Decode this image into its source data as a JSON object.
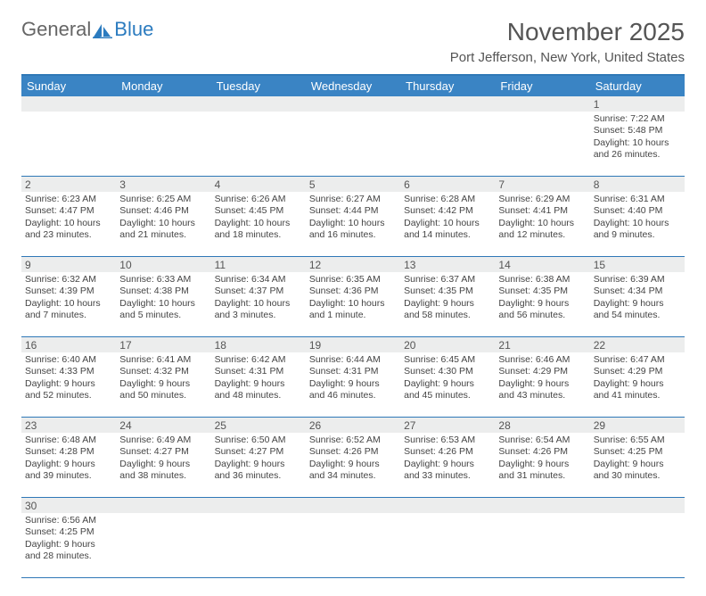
{
  "logo": {
    "part1": "General",
    "part2": "Blue"
  },
  "title": "November 2025",
  "location": "Port Jefferson, New York, United States",
  "dow": [
    "Sunday",
    "Monday",
    "Tuesday",
    "Wednesday",
    "Thursday",
    "Friday",
    "Saturday"
  ],
  "colors": {
    "header_bg": "#3a84c4",
    "border": "#2f78b7",
    "daynum_bg": "#eceded",
    "text": "#444"
  },
  "weeks": [
    [
      null,
      null,
      null,
      null,
      null,
      null,
      {
        "d": "1",
        "sr": "Sunrise: 7:22 AM",
        "ss": "Sunset: 5:48 PM",
        "dl": "Daylight: 10 hours and 26 minutes."
      }
    ],
    [
      {
        "d": "2",
        "sr": "Sunrise: 6:23 AM",
        "ss": "Sunset: 4:47 PM",
        "dl": "Daylight: 10 hours and 23 minutes."
      },
      {
        "d": "3",
        "sr": "Sunrise: 6:25 AM",
        "ss": "Sunset: 4:46 PM",
        "dl": "Daylight: 10 hours and 21 minutes."
      },
      {
        "d": "4",
        "sr": "Sunrise: 6:26 AM",
        "ss": "Sunset: 4:45 PM",
        "dl": "Daylight: 10 hours and 18 minutes."
      },
      {
        "d": "5",
        "sr": "Sunrise: 6:27 AM",
        "ss": "Sunset: 4:44 PM",
        "dl": "Daylight: 10 hours and 16 minutes."
      },
      {
        "d": "6",
        "sr": "Sunrise: 6:28 AM",
        "ss": "Sunset: 4:42 PM",
        "dl": "Daylight: 10 hours and 14 minutes."
      },
      {
        "d": "7",
        "sr": "Sunrise: 6:29 AM",
        "ss": "Sunset: 4:41 PM",
        "dl": "Daylight: 10 hours and 12 minutes."
      },
      {
        "d": "8",
        "sr": "Sunrise: 6:31 AM",
        "ss": "Sunset: 4:40 PM",
        "dl": "Daylight: 10 hours and 9 minutes."
      }
    ],
    [
      {
        "d": "9",
        "sr": "Sunrise: 6:32 AM",
        "ss": "Sunset: 4:39 PM",
        "dl": "Daylight: 10 hours and 7 minutes."
      },
      {
        "d": "10",
        "sr": "Sunrise: 6:33 AM",
        "ss": "Sunset: 4:38 PM",
        "dl": "Daylight: 10 hours and 5 minutes."
      },
      {
        "d": "11",
        "sr": "Sunrise: 6:34 AM",
        "ss": "Sunset: 4:37 PM",
        "dl": "Daylight: 10 hours and 3 minutes."
      },
      {
        "d": "12",
        "sr": "Sunrise: 6:35 AM",
        "ss": "Sunset: 4:36 PM",
        "dl": "Daylight: 10 hours and 1 minute."
      },
      {
        "d": "13",
        "sr": "Sunrise: 6:37 AM",
        "ss": "Sunset: 4:35 PM",
        "dl": "Daylight: 9 hours and 58 minutes."
      },
      {
        "d": "14",
        "sr": "Sunrise: 6:38 AM",
        "ss": "Sunset: 4:35 PM",
        "dl": "Daylight: 9 hours and 56 minutes."
      },
      {
        "d": "15",
        "sr": "Sunrise: 6:39 AM",
        "ss": "Sunset: 4:34 PM",
        "dl": "Daylight: 9 hours and 54 minutes."
      }
    ],
    [
      {
        "d": "16",
        "sr": "Sunrise: 6:40 AM",
        "ss": "Sunset: 4:33 PM",
        "dl": "Daylight: 9 hours and 52 minutes."
      },
      {
        "d": "17",
        "sr": "Sunrise: 6:41 AM",
        "ss": "Sunset: 4:32 PM",
        "dl": "Daylight: 9 hours and 50 minutes."
      },
      {
        "d": "18",
        "sr": "Sunrise: 6:42 AM",
        "ss": "Sunset: 4:31 PM",
        "dl": "Daylight: 9 hours and 48 minutes."
      },
      {
        "d": "19",
        "sr": "Sunrise: 6:44 AM",
        "ss": "Sunset: 4:31 PM",
        "dl": "Daylight: 9 hours and 46 minutes."
      },
      {
        "d": "20",
        "sr": "Sunrise: 6:45 AM",
        "ss": "Sunset: 4:30 PM",
        "dl": "Daylight: 9 hours and 45 minutes."
      },
      {
        "d": "21",
        "sr": "Sunrise: 6:46 AM",
        "ss": "Sunset: 4:29 PM",
        "dl": "Daylight: 9 hours and 43 minutes."
      },
      {
        "d": "22",
        "sr": "Sunrise: 6:47 AM",
        "ss": "Sunset: 4:29 PM",
        "dl": "Daylight: 9 hours and 41 minutes."
      }
    ],
    [
      {
        "d": "23",
        "sr": "Sunrise: 6:48 AM",
        "ss": "Sunset: 4:28 PM",
        "dl": "Daylight: 9 hours and 39 minutes."
      },
      {
        "d": "24",
        "sr": "Sunrise: 6:49 AM",
        "ss": "Sunset: 4:27 PM",
        "dl": "Daylight: 9 hours and 38 minutes."
      },
      {
        "d": "25",
        "sr": "Sunrise: 6:50 AM",
        "ss": "Sunset: 4:27 PM",
        "dl": "Daylight: 9 hours and 36 minutes."
      },
      {
        "d": "26",
        "sr": "Sunrise: 6:52 AM",
        "ss": "Sunset: 4:26 PM",
        "dl": "Daylight: 9 hours and 34 minutes."
      },
      {
        "d": "27",
        "sr": "Sunrise: 6:53 AM",
        "ss": "Sunset: 4:26 PM",
        "dl": "Daylight: 9 hours and 33 minutes."
      },
      {
        "d": "28",
        "sr": "Sunrise: 6:54 AM",
        "ss": "Sunset: 4:26 PM",
        "dl": "Daylight: 9 hours and 31 minutes."
      },
      {
        "d": "29",
        "sr": "Sunrise: 6:55 AM",
        "ss": "Sunset: 4:25 PM",
        "dl": "Daylight: 9 hours and 30 minutes."
      }
    ],
    [
      {
        "d": "30",
        "sr": "Sunrise: 6:56 AM",
        "ss": "Sunset: 4:25 PM",
        "dl": "Daylight: 9 hours and 28 minutes."
      },
      null,
      null,
      null,
      null,
      null,
      null
    ]
  ]
}
